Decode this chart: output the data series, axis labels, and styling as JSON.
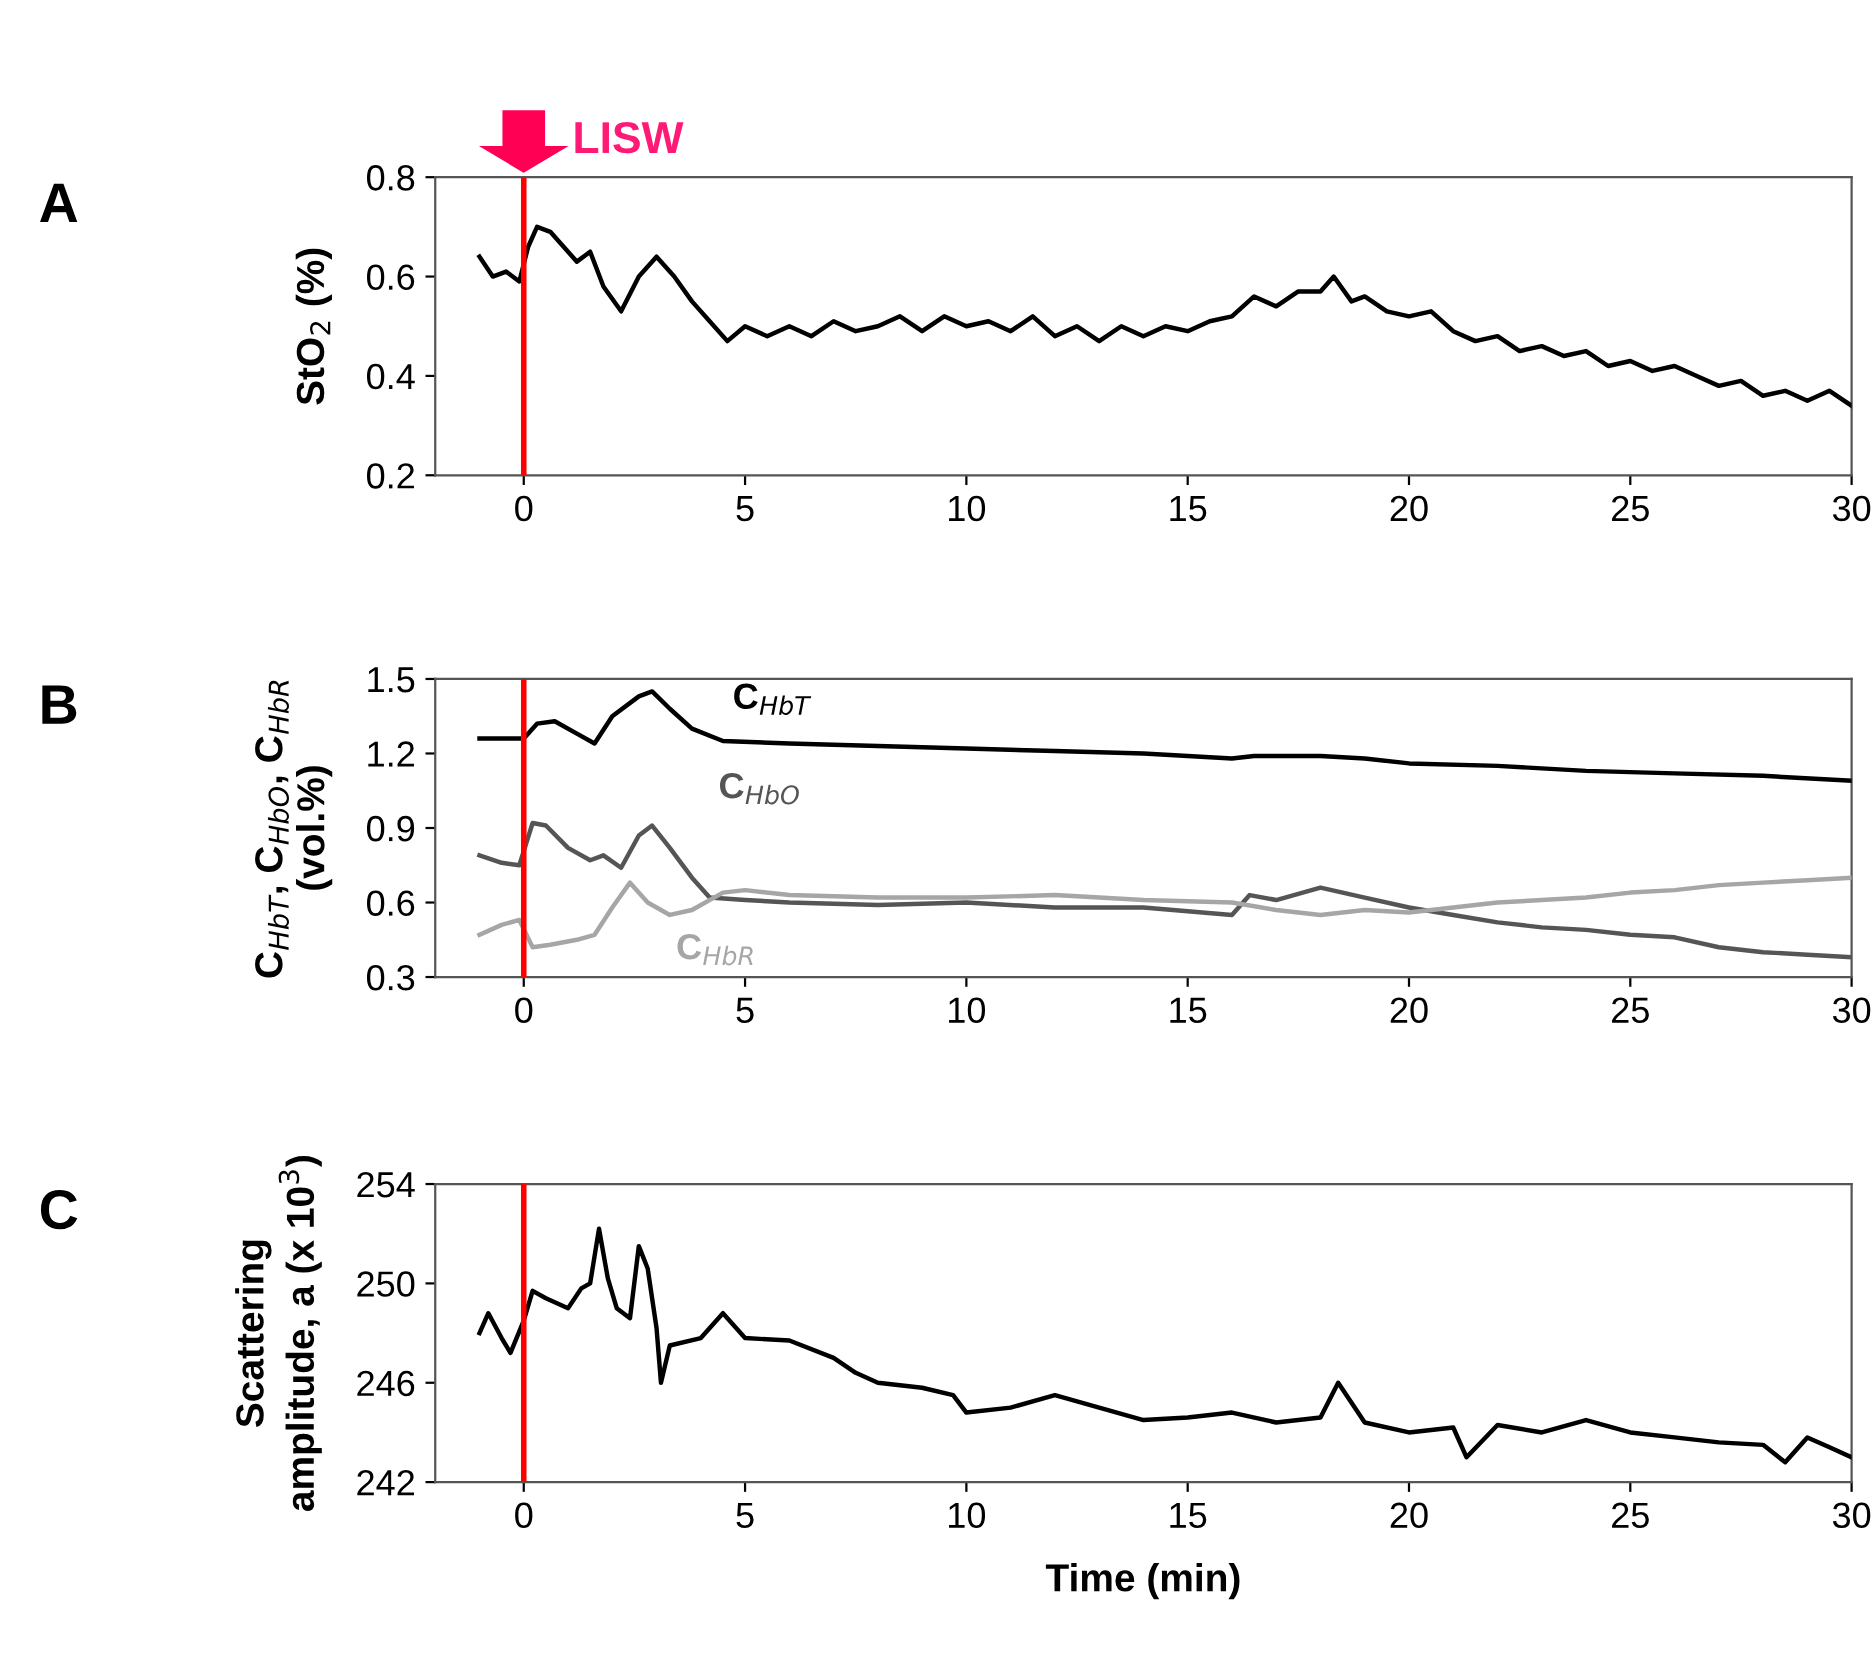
{
  "chart_data": [
    {
      "type": "line",
      "ylabel": "StO$_{2}$ (%)",
      "annotations": [
        "A"
      ],
      "xlim": [
        -2,
        30
      ],
      "xticks": [
        0,
        5,
        10,
        15,
        20,
        25,
        30
      ],
      "ylim": [
        0.2,
        0.8
      ],
      "yticks": [
        0.2,
        0.4,
        0.6,
        0.8
      ],
      "grid": false,
      "legend": false,
      "ref_lines": [
        {
          "axis": "x",
          "value": 0,
          "label": "LISW",
          "color": "#ff0000"
        }
      ],
      "series": [
        {
          "color": "#000000",
          "x": [
            -1,
            -0.7,
            -0.4,
            -0.1,
            0.1,
            0.3,
            0.6,
            0.9,
            1.2,
            1.5,
            1.8,
            2.2,
            2.6,
            3.0,
            3.4,
            3.8,
            4.2,
            4.6,
            5,
            5.5,
            6,
            6.5,
            7,
            7.5,
            8,
            8.5,
            9,
            9.5,
            10,
            10.5,
            11,
            11.5,
            12,
            12.5,
            13,
            13.5,
            14,
            14.5,
            15,
            15.5,
            16,
            16.5,
            17,
            17.5,
            18,
            18.3,
            18.7,
            19,
            19.5,
            20,
            20.5,
            21,
            21.5,
            22,
            22.5,
            23,
            23.5,
            24,
            24.5,
            25,
            25.5,
            26,
            26.5,
            27,
            27.5,
            28,
            28.5,
            29,
            29.5,
            30
          ],
          "values": [
            0.64,
            0.6,
            0.61,
            0.59,
            0.66,
            0.7,
            0.69,
            0.66,
            0.63,
            0.65,
            0.58,
            0.53,
            0.6,
            0.64,
            0.6,
            0.55,
            0.51,
            0.47,
            0.5,
            0.48,
            0.5,
            0.48,
            0.51,
            0.49,
            0.5,
            0.52,
            0.49,
            0.52,
            0.5,
            0.51,
            0.49,
            0.52,
            0.48,
            0.5,
            0.47,
            0.5,
            0.48,
            0.5,
            0.49,
            0.51,
            0.52,
            0.56,
            0.54,
            0.57,
            0.57,
            0.6,
            0.55,
            0.56,
            0.53,
            0.52,
            0.53,
            0.49,
            0.47,
            0.48,
            0.45,
            0.46,
            0.44,
            0.45,
            0.42,
            0.43,
            0.41,
            0.42,
            0.4,
            0.38,
            0.39,
            0.36,
            0.37,
            0.35,
            0.37,
            0.34
          ]
        }
      ]
    },
    {
      "type": "line",
      "ylabel": "C$_{HbT}$, C$_{HbO}$, C$_{HbR}$\n(vol.%)",
      "annotations": [
        "B"
      ],
      "xlim": [
        -2,
        30
      ],
      "xticks": [
        0,
        5,
        10,
        15,
        20,
        25,
        30
      ],
      "ylim": [
        0.3,
        1.5
      ],
      "yticks": [
        0.3,
        0.6,
        0.9,
        1.2,
        1.5
      ],
      "grid": false,
      "legend": false,
      "ref_lines": [
        {
          "axis": "x",
          "value": 0,
          "color": "#ff0000"
        }
      ],
      "series": [
        {
          "name": "C$_{HbT}$",
          "color": "#000000",
          "x": [
            -1,
            -0.5,
            0,
            0.3,
            0.7,
            1.2,
            1.6,
            2,
            2.6,
            2.9,
            3.3,
            3.8,
            4.5,
            6,
            8,
            10,
            12,
            14,
            16,
            16.5,
            18,
            19,
            20,
            22,
            24,
            26,
            28,
            30
          ],
          "values": [
            1.26,
            1.26,
            1.26,
            1.32,
            1.33,
            1.28,
            1.24,
            1.35,
            1.43,
            1.45,
            1.38,
            1.3,
            1.25,
            1.24,
            1.23,
            1.22,
            1.21,
            1.2,
            1.18,
            1.19,
            1.19,
            1.18,
            1.16,
            1.15,
            1.13,
            1.12,
            1.11,
            1.09
          ]
        },
        {
          "name": "C$_{HbO}$",
          "color": "#555555",
          "x": [
            -1,
            -0.5,
            -0.1,
            0.2,
            0.5,
            1,
            1.5,
            1.8,
            2.2,
            2.6,
            2.9,
            3.3,
            3.8,
            4.2,
            5,
            6,
            8,
            10,
            12,
            14,
            16,
            16.4,
            17,
            18,
            19,
            20,
            21,
            22,
            23,
            24,
            25,
            26,
            27,
            28,
            29,
            30
          ],
          "values": [
            0.79,
            0.76,
            0.75,
            0.92,
            0.91,
            0.82,
            0.77,
            0.79,
            0.74,
            0.87,
            0.91,
            0.82,
            0.7,
            0.62,
            0.61,
            0.6,
            0.59,
            0.6,
            0.58,
            0.58,
            0.55,
            0.63,
            0.61,
            0.66,
            0.62,
            0.58,
            0.55,
            0.52,
            0.5,
            0.49,
            0.47,
            0.46,
            0.42,
            0.4,
            0.39,
            0.38
          ]
        },
        {
          "name": "C$_{HbR}$",
          "color": "#a6a6a6",
          "x": [
            -1,
            -0.5,
            -0.1,
            0.2,
            0.6,
            1.2,
            1.6,
            2,
            2.4,
            2.8,
            3.3,
            3.8,
            4.5,
            5,
            6,
            8,
            10,
            12,
            14,
            16,
            17,
            18,
            19,
            20,
            21,
            22,
            23,
            24,
            25,
            26,
            27,
            28,
            29,
            30
          ],
          "values": [
            0.47,
            0.51,
            0.53,
            0.42,
            0.43,
            0.45,
            0.47,
            0.58,
            0.68,
            0.6,
            0.55,
            0.57,
            0.64,
            0.65,
            0.63,
            0.62,
            0.62,
            0.63,
            0.61,
            0.6,
            0.57,
            0.55,
            0.57,
            0.56,
            0.58,
            0.6,
            0.61,
            0.62,
            0.64,
            0.65,
            0.67,
            0.68,
            0.69,
            0.7
          ]
        }
      ]
    },
    {
      "type": "line",
      "xlabel": "Time (min)",
      "ylabel": "Scattering\namplitude, a (x 10$^{3}$)",
      "annotations": [
        "C"
      ],
      "xlim": [
        -2,
        30
      ],
      "xticks": [
        0,
        5,
        10,
        15,
        20,
        25,
        30
      ],
      "ylim": [
        242,
        254
      ],
      "yticks": [
        242,
        246,
        250,
        254
      ],
      "grid": false,
      "legend": false,
      "ref_lines": [
        {
          "axis": "x",
          "value": 0,
          "color": "#ff0000"
        }
      ],
      "series": [
        {
          "color": "#000000",
          "x": [
            -1,
            -0.8,
            -0.5,
            -0.3,
            0,
            0.2,
            0.5,
            1,
            1.3,
            1.5,
            1.7,
            1.9,
            2.1,
            2.4,
            2.6,
            2.8,
            3.0,
            3.1,
            3.3,
            4,
            4.5,
            5,
            6,
            7,
            7.5,
            8,
            9,
            9.7,
            10,
            11,
            12,
            13,
            14,
            15,
            16,
            17,
            18,
            18.4,
            19,
            20,
            21,
            21.3,
            22,
            23,
            24,
            25,
            26,
            27,
            28,
            28.5,
            29,
            29.5,
            30
          ],
          "values": [
            248,
            248.8,
            247.8,
            247.2,
            248.5,
            249.7,
            249.4,
            249,
            249.8,
            250,
            252.2,
            250.2,
            249,
            248.6,
            251.5,
            250.6,
            248.2,
            246,
            247.5,
            247.8,
            248.8,
            247.8,
            247.7,
            247,
            246.4,
            246,
            245.8,
            245.5,
            244.8,
            245,
            245.5,
            245,
            244.5,
            244.6,
            244.8,
            244.4,
            244.6,
            246,
            244.4,
            244,
            244.2,
            243,
            244.3,
            244,
            244.5,
            244,
            243.8,
            243.6,
            243.5,
            242.8,
            243.8,
            243.4,
            243
          ]
        }
      ]
    }
  ]
}
